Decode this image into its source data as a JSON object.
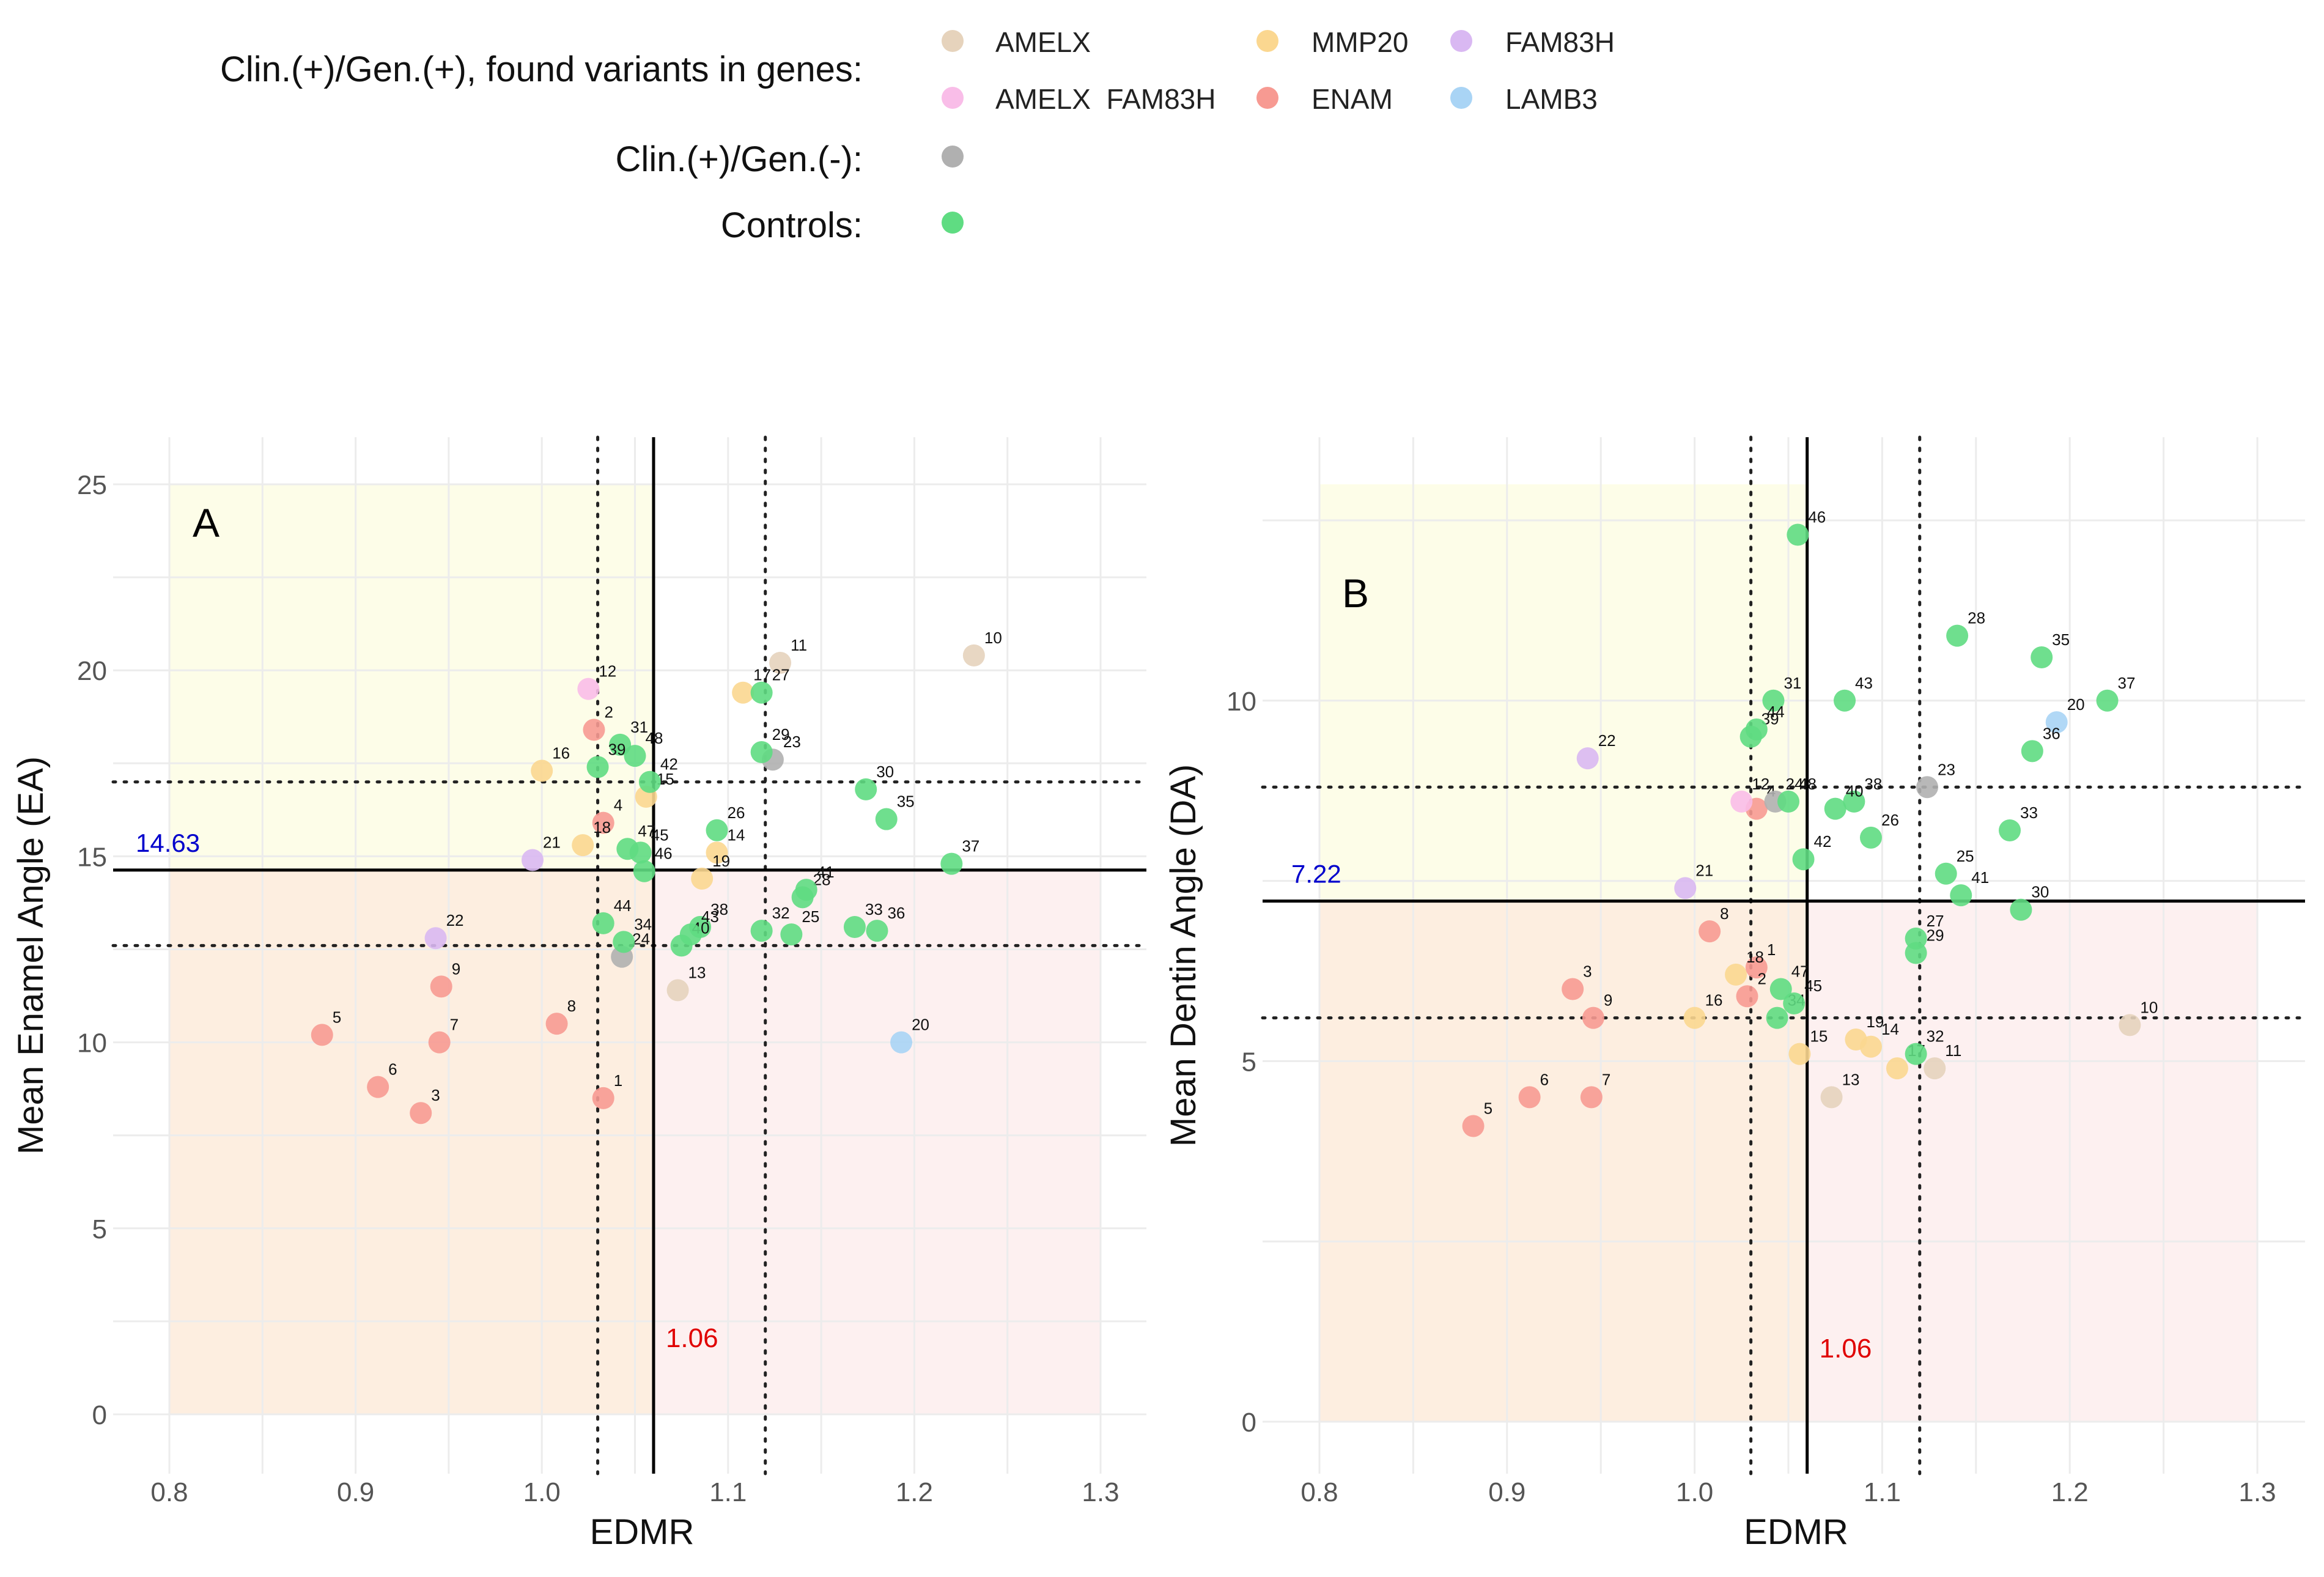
{
  "legend": {
    "genes_heading": "Clin.(+)/Gen.(+), found variants in genes:",
    "neg_heading": "Clin.(+)/Gen.(-):",
    "controls_heading": "Controls:",
    "genes": [
      {
        "label": "AMELX",
        "color": "#e6d3bc"
      },
      {
        "label": "MMP20",
        "color": "#fbd790"
      },
      {
        "label": "FAM83H",
        "color": "#d9b8f2"
      },
      {
        "label": "AMELX  FAM83H",
        "color": "#f9bde8"
      },
      {
        "label": "ENAM",
        "color": "#f79a92"
      },
      {
        "label": "LAMB3",
        "color": "#a9d4f5"
      }
    ],
    "neg_color": "#b0b0b0",
    "control_color": "#5fdc82"
  },
  "chart_data": [
    {
      "type": "scatter",
      "panel_label": "A",
      "xlabel": "EDMR",
      "ylabel": "Mean Enamel Angle (EA)",
      "xlim": [
        0.8,
        1.3
      ],
      "ylim": [
        0,
        25
      ],
      "xticks": [
        "0.8",
        "0.9",
        "1.0",
        "1.1",
        "1.2",
        "1.3"
      ],
      "yticks": [
        "0",
        "5",
        "10",
        "15",
        "20",
        "25"
      ],
      "x_threshold": 1.06,
      "x_threshold_label": "1.06",
      "x_dotted": [
        1.03,
        1.12
      ],
      "y_threshold": 14.63,
      "y_threshold_label": "14.63",
      "y_dotted": [
        12.6,
        17.0
      ],
      "points": [
        {
          "label": "1",
          "x": 1.033,
          "y": 8.5,
          "group": "ENAM"
        },
        {
          "label": "2",
          "x": 1.028,
          "y": 18.4,
          "group": "ENAM"
        },
        {
          "label": "3",
          "x": 0.935,
          "y": 8.1,
          "group": "ENAM"
        },
        {
          "label": "4",
          "x": 1.033,
          "y": 15.9,
          "group": "ENAM"
        },
        {
          "label": "5",
          "x": 0.882,
          "y": 10.2,
          "group": "ENAM"
        },
        {
          "label": "6",
          "x": 0.912,
          "y": 8.8,
          "group": "ENAM"
        },
        {
          "label": "7",
          "x": 0.945,
          "y": 10.0,
          "group": "ENAM"
        },
        {
          "label": "8",
          "x": 1.008,
          "y": 10.5,
          "group": "ENAM"
        },
        {
          "label": "9",
          "x": 0.946,
          "y": 11.5,
          "group": "ENAM"
        },
        {
          "label": "10",
          "x": 1.232,
          "y": 20.4,
          "group": "AMELX"
        },
        {
          "label": "11",
          "x": 1.128,
          "y": 20.2,
          "group": "AMELX"
        },
        {
          "label": "12",
          "x": 1.025,
          "y": 19.5,
          "group": "AMELX FAM83H"
        },
        {
          "label": "13",
          "x": 1.073,
          "y": 11.4,
          "group": "AMELX"
        },
        {
          "label": "14",
          "x": 1.094,
          "y": 15.1,
          "group": "MMP20"
        },
        {
          "label": "15",
          "x": 1.056,
          "y": 16.6,
          "group": "MMP20"
        },
        {
          "label": "16",
          "x": 1.0,
          "y": 17.3,
          "group": "MMP20"
        },
        {
          "label": "17",
          "x": 1.108,
          "y": 19.4,
          "group": "MMP20"
        },
        {
          "label": "18",
          "x": 1.022,
          "y": 15.3,
          "group": "MMP20"
        },
        {
          "label": "19",
          "x": 1.086,
          "y": 14.4,
          "group": "MMP20"
        },
        {
          "label": "20",
          "x": 1.193,
          "y": 10.0,
          "group": "LAMB3"
        },
        {
          "label": "21",
          "x": 0.995,
          "y": 14.9,
          "group": "FAM83H"
        },
        {
          "label": "22",
          "x": 0.943,
          "y": 12.8,
          "group": "FAM83H"
        },
        {
          "label": "23",
          "x": 1.124,
          "y": 17.6,
          "group": "Clin.(+)/Gen.(-)"
        },
        {
          "label": "24",
          "x": 1.043,
          "y": 12.3,
          "group": "Clin.(+)/Gen.(-)"
        },
        {
          "label": "25",
          "x": 1.134,
          "y": 12.9,
          "group": "Controls"
        },
        {
          "label": "26",
          "x": 1.094,
          "y": 15.7,
          "group": "Controls"
        },
        {
          "label": "27",
          "x": 1.118,
          "y": 19.4,
          "group": "Controls"
        },
        {
          "label": "28",
          "x": 1.14,
          "y": 13.9,
          "group": "Controls"
        },
        {
          "label": "29",
          "x": 1.118,
          "y": 17.8,
          "group": "Controls"
        },
        {
          "label": "30",
          "x": 1.174,
          "y": 16.8,
          "group": "Controls"
        },
        {
          "label": "31",
          "x": 1.042,
          "y": 18.0,
          "group": "Controls"
        },
        {
          "label": "32",
          "x": 1.118,
          "y": 13.0,
          "group": "Controls"
        },
        {
          "label": "33",
          "x": 1.168,
          "y": 13.1,
          "group": "Controls"
        },
        {
          "label": "34",
          "x": 1.044,
          "y": 12.7,
          "group": "Controls"
        },
        {
          "label": "35",
          "x": 1.185,
          "y": 16.0,
          "group": "Controls"
        },
        {
          "label": "36",
          "x": 1.18,
          "y": 13.0,
          "group": "Controls"
        },
        {
          "label": "37",
          "x": 1.22,
          "y": 14.8,
          "group": "Controls"
        },
        {
          "label": "38",
          "x": 1.085,
          "y": 13.1,
          "group": "Controls"
        },
        {
          "label": "39",
          "x": 1.03,
          "y": 17.4,
          "group": "Controls"
        },
        {
          "label": "40",
          "x": 1.075,
          "y": 12.6,
          "group": "Controls"
        },
        {
          "label": "41",
          "x": 1.142,
          "y": 14.1,
          "group": "Controls"
        },
        {
          "label": "42",
          "x": 1.058,
          "y": 17.0,
          "group": "Controls"
        },
        {
          "label": "43",
          "x": 1.08,
          "y": 12.9,
          "group": "Controls"
        },
        {
          "label": "44",
          "x": 1.033,
          "y": 13.2,
          "group": "Controls"
        },
        {
          "label": "45",
          "x": 1.053,
          "y": 15.1,
          "group": "Controls"
        },
        {
          "label": "46",
          "x": 1.055,
          "y": 14.6,
          "group": "Controls"
        },
        {
          "label": "47",
          "x": 1.046,
          "y": 15.2,
          "group": "Controls"
        },
        {
          "label": "48",
          "x": 1.05,
          "y": 17.7,
          "group": "Controls"
        }
      ]
    },
    {
      "type": "scatter",
      "panel_label": "B",
      "xlabel": "EDMR",
      "ylabel": "Mean Dentin Angle (DA)",
      "xlim": [
        0.8,
        1.3
      ],
      "ylim": [
        0,
        13
      ],
      "xticks": [
        "0.8",
        "0.9",
        "1.0",
        "1.1",
        "1.2",
        "1.3"
      ],
      "yticks": [
        "0",
        "5",
        "10"
      ],
      "x_threshold": 1.06,
      "x_threshold_label": "1.06",
      "x_dotted": [
        1.03,
        1.12
      ],
      "y_threshold": 7.22,
      "y_threshold_label": "7.22",
      "y_dotted": [
        5.6,
        8.8
      ],
      "points": [
        {
          "label": "1",
          "x": 1.033,
          "y": 6.3,
          "group": "ENAM"
        },
        {
          "label": "2",
          "x": 1.028,
          "y": 5.9,
          "group": "ENAM"
        },
        {
          "label": "3",
          "x": 0.935,
          "y": 6.0,
          "group": "ENAM"
        },
        {
          "label": "4",
          "x": 1.033,
          "y": 8.5,
          "group": "ENAM"
        },
        {
          "label": "5",
          "x": 0.882,
          "y": 4.1,
          "group": "ENAM"
        },
        {
          "label": "6",
          "x": 0.912,
          "y": 4.5,
          "group": "ENAM"
        },
        {
          "label": "7",
          "x": 0.945,
          "y": 4.5,
          "group": "ENAM"
        },
        {
          "label": "8",
          "x": 1.008,
          "y": 6.8,
          "group": "ENAM"
        },
        {
          "label": "9",
          "x": 0.946,
          "y": 5.6,
          "group": "ENAM"
        },
        {
          "label": "10",
          "x": 1.232,
          "y": 5.5,
          "group": "AMELX"
        },
        {
          "label": "11",
          "x": 1.128,
          "y": 4.9,
          "group": "AMELX"
        },
        {
          "label": "12",
          "x": 1.025,
          "y": 8.6,
          "group": "AMELX FAM83H"
        },
        {
          "label": "13",
          "x": 1.073,
          "y": 4.5,
          "group": "AMELX"
        },
        {
          "label": "14",
          "x": 1.094,
          "y": 5.2,
          "group": "MMP20"
        },
        {
          "label": "15",
          "x": 1.056,
          "y": 5.1,
          "group": "MMP20"
        },
        {
          "label": "16",
          "x": 1.0,
          "y": 5.6,
          "group": "MMP20"
        },
        {
          "label": "17",
          "x": 1.108,
          "y": 4.9,
          "group": "MMP20"
        },
        {
          "label": "18",
          "x": 1.022,
          "y": 6.2,
          "group": "MMP20"
        },
        {
          "label": "19",
          "x": 1.086,
          "y": 5.3,
          "group": "MMP20"
        },
        {
          "label": "20",
          "x": 1.193,
          "y": 9.7,
          "group": "LAMB3"
        },
        {
          "label": "21",
          "x": 0.995,
          "y": 7.4,
          "group": "FAM83H"
        },
        {
          "label": "22",
          "x": 0.943,
          "y": 9.2,
          "group": "FAM83H"
        },
        {
          "label": "23",
          "x": 1.124,
          "y": 8.8,
          "group": "Clin.(+)/Gen.(-)"
        },
        {
          "label": "24",
          "x": 1.043,
          "y": 8.6,
          "group": "Clin.(+)/Gen.(-)"
        },
        {
          "label": "25",
          "x": 1.134,
          "y": 7.6,
          "group": "Controls"
        },
        {
          "label": "26",
          "x": 1.094,
          "y": 8.1,
          "group": "Controls"
        },
        {
          "label": "27",
          "x": 1.118,
          "y": 6.7,
          "group": "Controls"
        },
        {
          "label": "28",
          "x": 1.14,
          "y": 10.9,
          "group": "Controls"
        },
        {
          "label": "29",
          "x": 1.118,
          "y": 6.5,
          "group": "Controls"
        },
        {
          "label": "30",
          "x": 1.174,
          "y": 7.1,
          "group": "Controls"
        },
        {
          "label": "31",
          "x": 1.042,
          "y": 10.0,
          "group": "Controls"
        },
        {
          "label": "32",
          "x": 1.118,
          "y": 5.1,
          "group": "Controls"
        },
        {
          "label": "33",
          "x": 1.168,
          "y": 8.2,
          "group": "Controls"
        },
        {
          "label": "34",
          "x": 1.044,
          "y": 5.6,
          "group": "Controls"
        },
        {
          "label": "35",
          "x": 1.185,
          "y": 10.6,
          "group": "Controls"
        },
        {
          "label": "36",
          "x": 1.18,
          "y": 9.3,
          "group": "Controls"
        },
        {
          "label": "37",
          "x": 1.22,
          "y": 10.0,
          "group": "Controls"
        },
        {
          "label": "38",
          "x": 1.085,
          "y": 8.6,
          "group": "Controls"
        },
        {
          "label": "39",
          "x": 1.03,
          "y": 9.5,
          "group": "Controls"
        },
        {
          "label": "40",
          "x": 1.075,
          "y": 8.5,
          "group": "Controls"
        },
        {
          "label": "41",
          "x": 1.142,
          "y": 7.3,
          "group": "Controls"
        },
        {
          "label": "42",
          "x": 1.058,
          "y": 7.8,
          "group": "Controls"
        },
        {
          "label": "43",
          "x": 1.08,
          "y": 10.0,
          "group": "Controls"
        },
        {
          "label": "44",
          "x": 1.033,
          "y": 9.6,
          "group": "Controls"
        },
        {
          "label": "45",
          "x": 1.053,
          "y": 5.8,
          "group": "Controls"
        },
        {
          "label": "46",
          "x": 1.055,
          "y": 12.3,
          "group": "Controls"
        },
        {
          "label": "47",
          "x": 1.046,
          "y": 6.0,
          "group": "Controls"
        },
        {
          "label": "48",
          "x": 1.05,
          "y": 8.6,
          "group": "Controls"
        }
      ]
    }
  ]
}
